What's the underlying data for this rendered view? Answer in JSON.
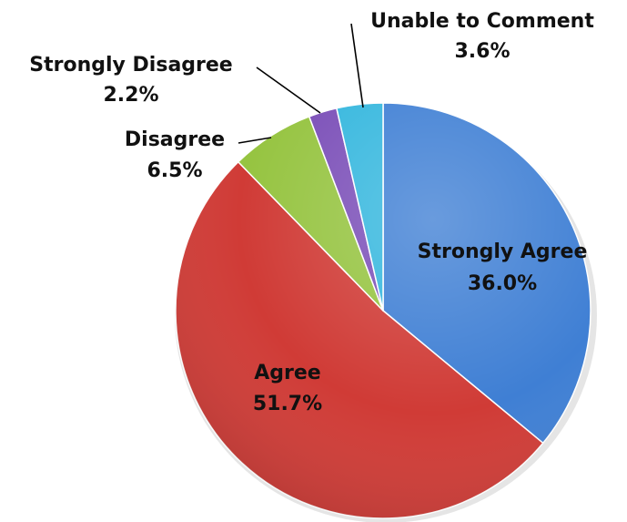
{
  "chart_data": {
    "type": "pie",
    "slices": [
      {
        "label": "Strongly Agree",
        "value": 36.0,
        "display": "36.0%",
        "color": "#3F7FD4"
      },
      {
        "label": "Agree",
        "value": 51.7,
        "display": "51.7%",
        "color": "#D03B36"
      },
      {
        "label": "Disagree",
        "value": 6.5,
        "display": "6.5%",
        "color": "#96C441"
      },
      {
        "label": "Strongly Disagree",
        "value": 2.2,
        "display": "2.2%",
        "color": "#7B4FB8"
      },
      {
        "label": "Unable to Comment",
        "value": 3.6,
        "display": "3.6%",
        "color": "#35B7DE"
      }
    ],
    "start_angle": "12 o'clock",
    "direction": "clockwise",
    "data_labels": "category name and percentage"
  }
}
